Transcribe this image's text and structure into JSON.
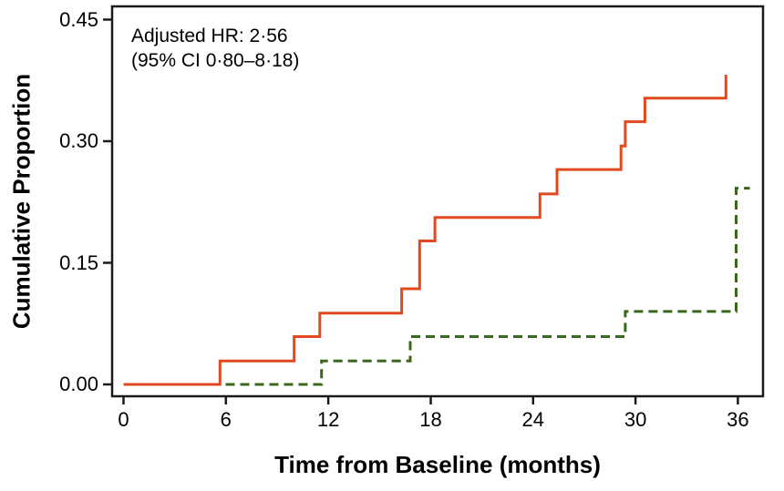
{
  "figure": {
    "annotation": {
      "line1": "Adjusted HR: 2·56",
      "line2": "(95% CI 0·80–8·18)"
    },
    "x_axis": {
      "title": "Time from Baseline (months)",
      "ticks": [
        "0",
        "6",
        "12",
        "18",
        "24",
        "30",
        "36"
      ]
    },
    "y_axis": {
      "title": "Cumulative Proportion",
      "ticks": [
        "0.00",
        "0.15",
        "0.30",
        "0.45"
      ]
    },
    "colors": {
      "red_series": "#E1491E",
      "green_series": "#3A671C",
      "frame": "#1a1a1a"
    }
  },
  "chart_data": {
    "type": "line",
    "subtype": "step-function cumulative incidence (Kaplan-Meier style)",
    "title": "",
    "xlabel": "Time from Baseline (months)",
    "ylabel": "Cumulative Proportion",
    "xlim": [
      -0.7,
      37.5
    ],
    "ylim": [
      -0.015,
      0.466
    ],
    "x_ticks": [
      0,
      6,
      12,
      18,
      24,
      30,
      36
    ],
    "y_ticks": [
      0.0,
      0.15,
      0.3,
      0.45
    ],
    "grid": false,
    "legend": "none (annotation text only)",
    "annotation": "Adjusted HR: 2·56 (95% CI 0·80–8·18)",
    "series": [
      {
        "name": "dashed-green-group",
        "style": "dashed",
        "color": "#3A671C",
        "steps": [
          [
            0,
            0.0
          ],
          [
            11.6,
            0.029
          ],
          [
            16.8,
            0.059
          ],
          [
            29.4,
            0.09
          ],
          [
            35.9,
            0.242
          ]
        ],
        "end_time": 36.7
      },
      {
        "name": "solid-red-group",
        "style": "solid",
        "color": "#E1491E",
        "steps": [
          [
            0,
            0.0
          ],
          [
            5.65,
            0.029
          ],
          [
            10.0,
            0.059
          ],
          [
            11.5,
            0.088
          ],
          [
            16.3,
            0.118
          ],
          [
            17.35,
            0.177
          ],
          [
            18.25,
            0.206
          ],
          [
            24.4,
            0.235
          ],
          [
            25.4,
            0.265
          ],
          [
            29.15,
            0.294
          ],
          [
            29.4,
            0.324
          ],
          [
            30.55,
            0.353
          ],
          [
            35.3,
            0.382
          ]
        ],
        "end_time": 35.3
      }
    ]
  }
}
